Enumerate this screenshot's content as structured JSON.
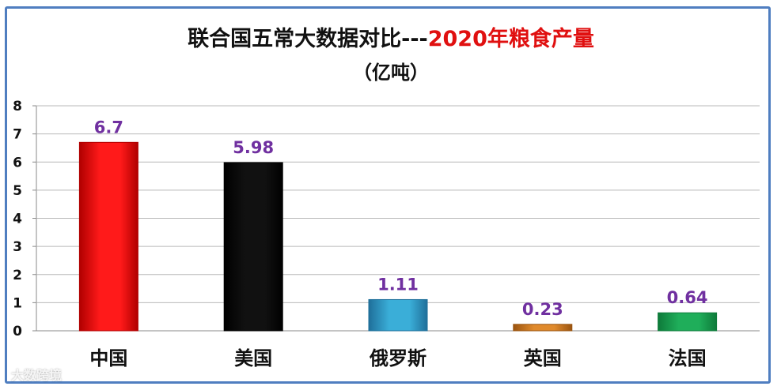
{
  "chart_data": {
    "type": "bar",
    "title_part1": "联合国五常大数据对比---",
    "title_part2": "2020年粮食产量",
    "subtitle": "（亿吨）",
    "categories": [
      "中国",
      "美国",
      "俄罗斯",
      "英国",
      "法国"
    ],
    "values": [
      6.7,
      5.98,
      1.11,
      0.23,
      0.64
    ],
    "data_labels": [
      "6.7",
      "5.98",
      "1.11",
      "0.23",
      "0.64"
    ],
    "ylim": [
      0,
      8
    ],
    "yticks": [
      "0",
      "1",
      "2",
      "3",
      "4",
      "5",
      "6",
      "7",
      "8"
    ],
    "grid": true,
    "legend": "none",
    "colors": {
      "bars": [
        "#ff1a1a",
        "#111111",
        "#3aaed8",
        "#e08a2c",
        "#1fae5a"
      ],
      "bar_edges": [
        "#b00000",
        "#000000",
        "#1f6f9a",
        "#9a5410",
        "#0e7a3a"
      ],
      "title_accent": "#e01010",
      "data_label": "#7030a0",
      "grid": "#b8b8b8"
    }
  },
  "watermark": "大数跨境"
}
